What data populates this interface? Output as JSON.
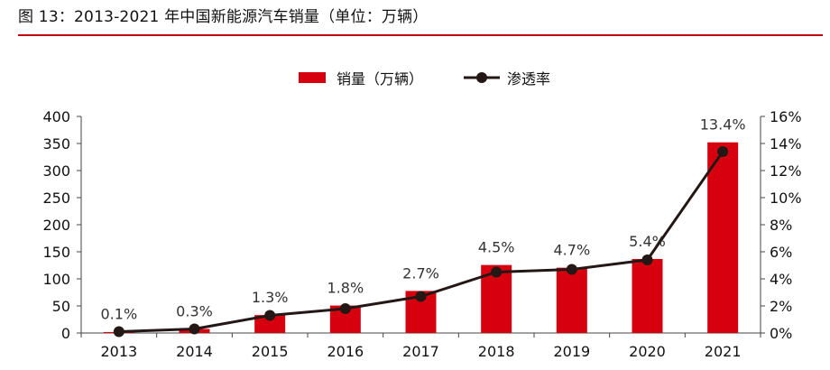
{
  "figure_title": "图 13：2013-2021 年中国新能源汽车销量（单位：万辆）",
  "colors": {
    "accent_rule": "#c0000b",
    "bar": "#d7000f",
    "line": "#231815"
  },
  "chart_data": {
    "type": "bar",
    "categories": [
      "2013",
      "2014",
      "2015",
      "2016",
      "2017",
      "2018",
      "2019",
      "2020",
      "2021"
    ],
    "series": [
      {
        "name": "销量（万辆）",
        "kind": "bar",
        "axis": "left",
        "values": [
          1.8,
          7.5,
          33.1,
          50.7,
          77.7,
          125.6,
          120.6,
          136.7,
          352.1
        ]
      },
      {
        "name": "渗透率",
        "kind": "line",
        "axis": "right",
        "values": [
          0.1,
          0.3,
          1.3,
          1.8,
          2.7,
          4.5,
          4.7,
          5.4,
          13.4
        ],
        "labels": [
          "0.1%",
          "0.3%",
          "1.3%",
          "1.8%",
          "2.7%",
          "4.5%",
          "4.7%",
          "5.4%",
          "13.4%"
        ]
      }
    ],
    "y_left": {
      "range": [
        0,
        400
      ],
      "ticks": [
        "0",
        "50",
        "100",
        "150",
        "200",
        "250",
        "300",
        "350",
        "400"
      ]
    },
    "y_right": {
      "range": [
        0,
        16
      ],
      "ticks": [
        "0%",
        "2%",
        "4%",
        "6%",
        "8%",
        "10%",
        "12%",
        "14%",
        "16%"
      ]
    },
    "legend": {
      "position": "top-center",
      "entries": [
        "销量（万辆）",
        "渗透率"
      ]
    },
    "grid": false
  }
}
